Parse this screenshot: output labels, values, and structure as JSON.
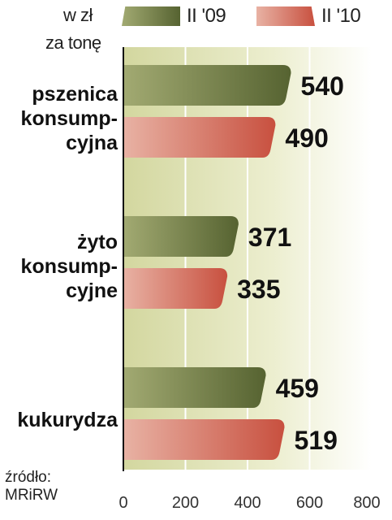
{
  "unit_label_line1": "w zł",
  "unit_label_line2": "za tonę",
  "source_line1": "źródło:",
  "source_line2": "MRiRW",
  "colors": {
    "series_2009": "#5d6a34",
    "series_2009_light": "#97a068",
    "series_2010": "#cc5a4a",
    "series_2010_light": "#e4a89a",
    "background_gradient_start": "#d9dca8",
    "background_gradient_end": "#ffffff"
  },
  "chart_data": {
    "type": "bar",
    "orientation": "horizontal",
    "categories": [
      "pszenica konsump-cyjna",
      "żyto konsump-cyjne",
      "kukurydza"
    ],
    "category_lines": [
      [
        "pszenica",
        "konsump-",
        "cyjna"
      ],
      [
        "żyto",
        "konsump-",
        "cyjne"
      ],
      [
        "kukurydza"
      ]
    ],
    "series": [
      {
        "name": "II '09",
        "values": [
          540,
          371,
          459
        ]
      },
      {
        "name": "II '10",
        "values": [
          490,
          335,
          519
        ]
      }
    ],
    "xlim": [
      0,
      800
    ],
    "xticks": [
      0,
      200,
      400,
      600,
      800
    ],
    "grid": true,
    "legend": "top"
  }
}
